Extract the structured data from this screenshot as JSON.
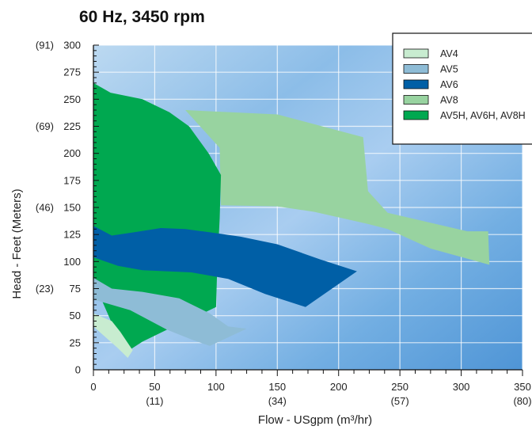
{
  "chart_data": {
    "type": "area",
    "title": "60 Hz, 3450 rpm",
    "xlabel": "Flow - USgpm (m³/hr)",
    "ylabel": "Head - Feet (Meters)",
    "xlim": [
      0,
      350
    ],
    "ylim": [
      0,
      300
    ],
    "x_ticks": [
      0,
      50,
      100,
      150,
      200,
      250,
      300,
      350
    ],
    "x_secondary_ticks": [
      {
        "x": 50,
        "label": "(11)"
      },
      {
        "x": 150,
        "label": "(34)"
      },
      {
        "x": 250,
        "label": "(57)"
      },
      {
        "x": 350,
        "label": "(80)"
      }
    ],
    "y_ticks": [
      0,
      25,
      50,
      75,
      100,
      125,
      150,
      175,
      200,
      225,
      250,
      275,
      300
    ],
    "y_secondary_ticks": [
      {
        "y": 75,
        "label": "(23)"
      },
      {
        "y": 150,
        "label": "(46)"
      },
      {
        "y": 225,
        "label": "(69)"
      },
      {
        "y": 300,
        "label": "(91)"
      }
    ],
    "grid": true,
    "legend_position": "top-right",
    "series": [
      {
        "name": "AV8",
        "color": "#98d3a0",
        "polygon": [
          [
            75,
            240
          ],
          [
            150,
            236
          ],
          [
            220,
            215
          ],
          [
            224,
            165
          ],
          [
            240,
            145
          ],
          [
            305,
            128
          ],
          [
            322,
            128
          ],
          [
            323,
            97
          ],
          [
            275,
            112
          ],
          [
            240,
            130
          ],
          [
            223,
            135
          ],
          [
            180,
            146
          ],
          [
            150,
            151
          ],
          [
            104,
            152
          ],
          [
            103,
            205
          ]
        ]
      },
      {
        "name": "AV5H, AV6H, AV8H",
        "color": "#00a850",
        "polygon": [
          [
            0,
            265
          ],
          [
            14,
            256
          ],
          [
            40,
            250
          ],
          [
            62,
            238
          ],
          [
            78,
            225
          ],
          [
            94,
            200
          ],
          [
            104,
            180
          ],
          [
            103,
            140
          ],
          [
            101,
            95
          ],
          [
            100,
            58
          ],
          [
            80,
            47
          ],
          [
            60,
            37
          ],
          [
            40,
            26
          ],
          [
            25,
            15
          ],
          [
            17,
            38
          ],
          [
            0,
            82
          ]
        ]
      },
      {
        "name": "AV4",
        "color": "#c8ecd0",
        "polygon": [
          [
            0,
            52
          ],
          [
            15,
            45
          ],
          [
            22,
            35
          ],
          [
            32,
            18
          ],
          [
            28,
            11
          ],
          [
            20,
            20
          ],
          [
            10,
            30
          ],
          [
            0,
            40
          ]
        ]
      },
      {
        "name": "AV5",
        "color": "#8ebcd6",
        "polygon": [
          [
            0,
            85
          ],
          [
            15,
            75
          ],
          [
            40,
            72
          ],
          [
            70,
            66
          ],
          [
            95,
            52
          ],
          [
            110,
            40
          ],
          [
            125,
            38
          ],
          [
            110,
            30
          ],
          [
            95,
            22
          ],
          [
            80,
            28
          ],
          [
            60,
            37
          ],
          [
            30,
            55
          ],
          [
            0,
            65
          ]
        ]
      },
      {
        "name": "AV6",
        "color": "#005fa6",
        "polygon": [
          [
            0,
            133
          ],
          [
            15,
            124
          ],
          [
            33,
            127
          ],
          [
            55,
            131
          ],
          [
            75,
            130
          ],
          [
            95,
            127
          ],
          [
            120,
            123
          ],
          [
            150,
            116
          ],
          [
            185,
            102
          ],
          [
            215,
            91
          ],
          [
            173,
            58
          ],
          [
            140,
            70
          ],
          [
            110,
            84
          ],
          [
            80,
            90
          ],
          [
            40,
            92
          ],
          [
            20,
            96
          ],
          [
            0,
            104
          ]
        ]
      }
    ],
    "legend": [
      "AV4",
      "AV5",
      "AV6",
      "AV8",
      "AV5H, AV6H, AV8H"
    ],
    "legend_colors": [
      "#c8ecd0",
      "#8ebcd6",
      "#005fa6",
      "#98d3a0",
      "#00a850"
    ]
  }
}
